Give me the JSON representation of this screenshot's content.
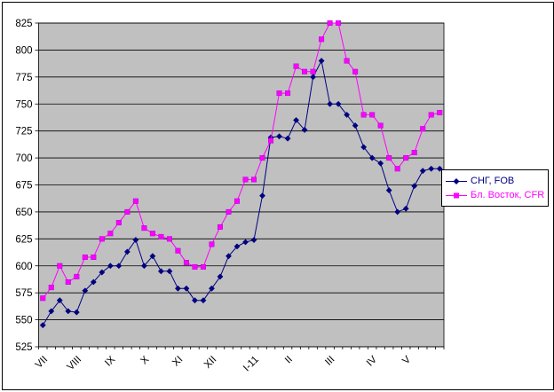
{
  "chart_data": {
    "type": "line",
    "title": "",
    "xlabel": "",
    "ylabel": "",
    "legend_position": "right",
    "grid": "horizontal",
    "plot_bg": "#c0c0c0",
    "y_axis": {
      "min": 525,
      "max": 825,
      "step": 25
    },
    "categories": [
      "VII",
      "",
      "",
      "",
      "VIII",
      "",
      "",
      "",
      "IX",
      "",
      "",
      "",
      "X",
      "",
      "",
      "",
      "XI",
      "",
      "",
      "",
      "XII",
      "",
      "",
      "",
      "",
      "I-11",
      "",
      "",
      "",
      "II",
      "",
      "",
      "",
      "",
      "III",
      "",
      "",
      "",
      "",
      "IV",
      "",
      "",
      "",
      "V",
      "",
      "",
      "",
      ""
    ],
    "series": [
      {
        "name": "СНГ, FOB",
        "color": "#000080",
        "marker": "diamond",
        "values": [
          545,
          558,
          568,
          558,
          557,
          577,
          585,
          594,
          600,
          600,
          613,
          624,
          600,
          609,
          595,
          595,
          579,
          579,
          568,
          568,
          579,
          590,
          609,
          618,
          622,
          624,
          665,
          719,
          720,
          718,
          735,
          726,
          775,
          790,
          750,
          750,
          740,
          730,
          710,
          700,
          695,
          670,
          650,
          653,
          674,
          688,
          690,
          690
        ]
      },
      {
        "name": "Бл. Восток, CFR",
        "color": "#ff00ff",
        "marker": "square",
        "values": [
          570,
          580,
          600,
          585,
          590,
          608,
          608,
          625,
          630,
          640,
          650,
          660,
          635,
          630,
          627,
          625,
          614,
          603,
          599,
          599,
          620,
          636,
          650,
          660,
          680,
          680,
          700,
          716,
          760,
          760,
          785,
          780,
          780,
          810,
          825,
          825,
          790,
          780,
          740,
          740,
          730,
          700,
          690,
          700,
          705,
          727,
          740,
          742
        ]
      }
    ]
  }
}
